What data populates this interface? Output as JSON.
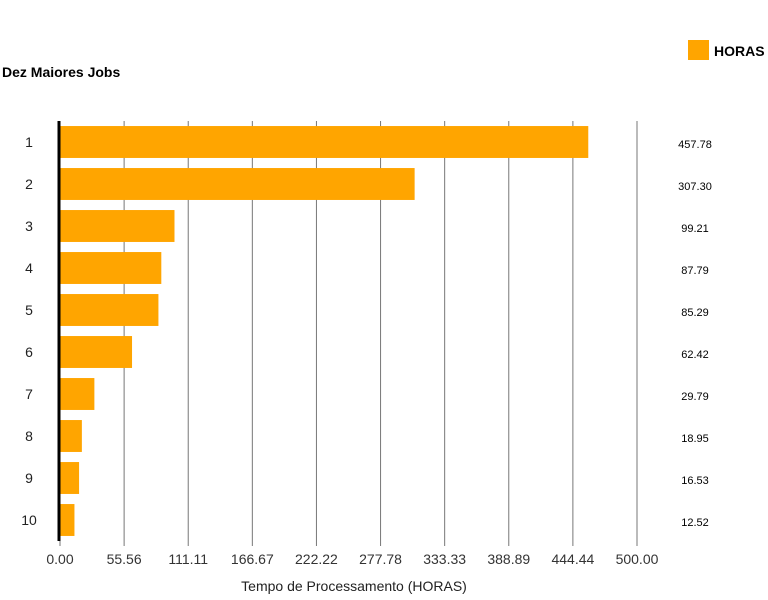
{
  "chart_data": {
    "type": "bar",
    "orientation": "horizontal",
    "title": "Dez Maiores Jobs",
    "xlabel": "Tempo de Processamento (HORAS)",
    "ylabel": "",
    "categories": [
      "1",
      "2",
      "3",
      "4",
      "5",
      "6",
      "7",
      "8",
      "9",
      "10"
    ],
    "series": [
      {
        "name": "HORAS",
        "color": "#FFA500",
        "values": [
          457.78,
          307.3,
          99.21,
          87.79,
          85.29,
          62.42,
          29.79,
          18.95,
          16.53,
          12.52
        ]
      }
    ],
    "value_labels": [
      "457.78",
      "307.30",
      "99.21",
      "87.79",
      "85.29",
      "62.42",
      "29.79",
      "18.95",
      "16.53",
      "12.52"
    ],
    "xlim": [
      0,
      500
    ],
    "xticks": [
      0,
      55.56,
      111.11,
      166.67,
      222.22,
      277.78,
      333.33,
      388.89,
      444.44,
      500
    ],
    "xtick_labels": [
      "0.00",
      "55.56",
      "111.11",
      "166.67",
      "222.22",
      "277.78",
      "333.33",
      "388.89",
      "444.44",
      "500.00"
    ],
    "grid": "vertical",
    "legend": {
      "position": "top-right",
      "entries": [
        "HORAS"
      ]
    }
  }
}
